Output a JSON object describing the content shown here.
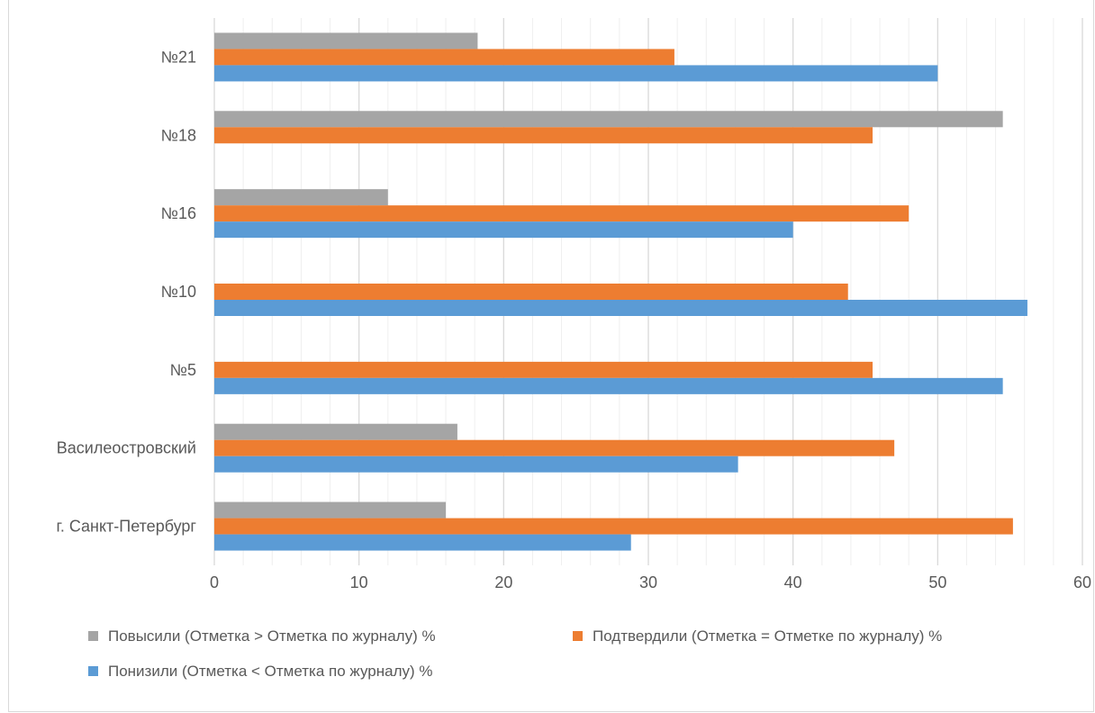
{
  "chart_data": {
    "type": "bar",
    "orientation": "horizontal",
    "categories": [
      "№21",
      "№18",
      "№16",
      "№10",
      "№5",
      "Василеостровский",
      "г. Санкт-Петербург"
    ],
    "series": [
      {
        "name": "Повысили (Отметка > Отметка по журналу) %",
        "color": "#a5a5a5",
        "values": [
          18.2,
          54.5,
          12,
          null,
          null,
          16.8,
          16
        ]
      },
      {
        "name": "Подтвердили (Отметка = Отметке по журналу) %",
        "color": "#ed7d31",
        "values": [
          31.8,
          45.5,
          48,
          43.8,
          45.5,
          47,
          55.2
        ]
      },
      {
        "name": "Понизили (Отметка < Отметка по журналу) %",
        "color": "#5b9bd5",
        "values": [
          50,
          null,
          40,
          56.2,
          54.5,
          36.2,
          28.8
        ]
      }
    ],
    "xlim": [
      0,
      60
    ],
    "xticks": [
      "0",
      "10",
      "20",
      "30",
      "40",
      "50",
      "60"
    ],
    "grid": true,
    "legend_position": "bottom"
  }
}
